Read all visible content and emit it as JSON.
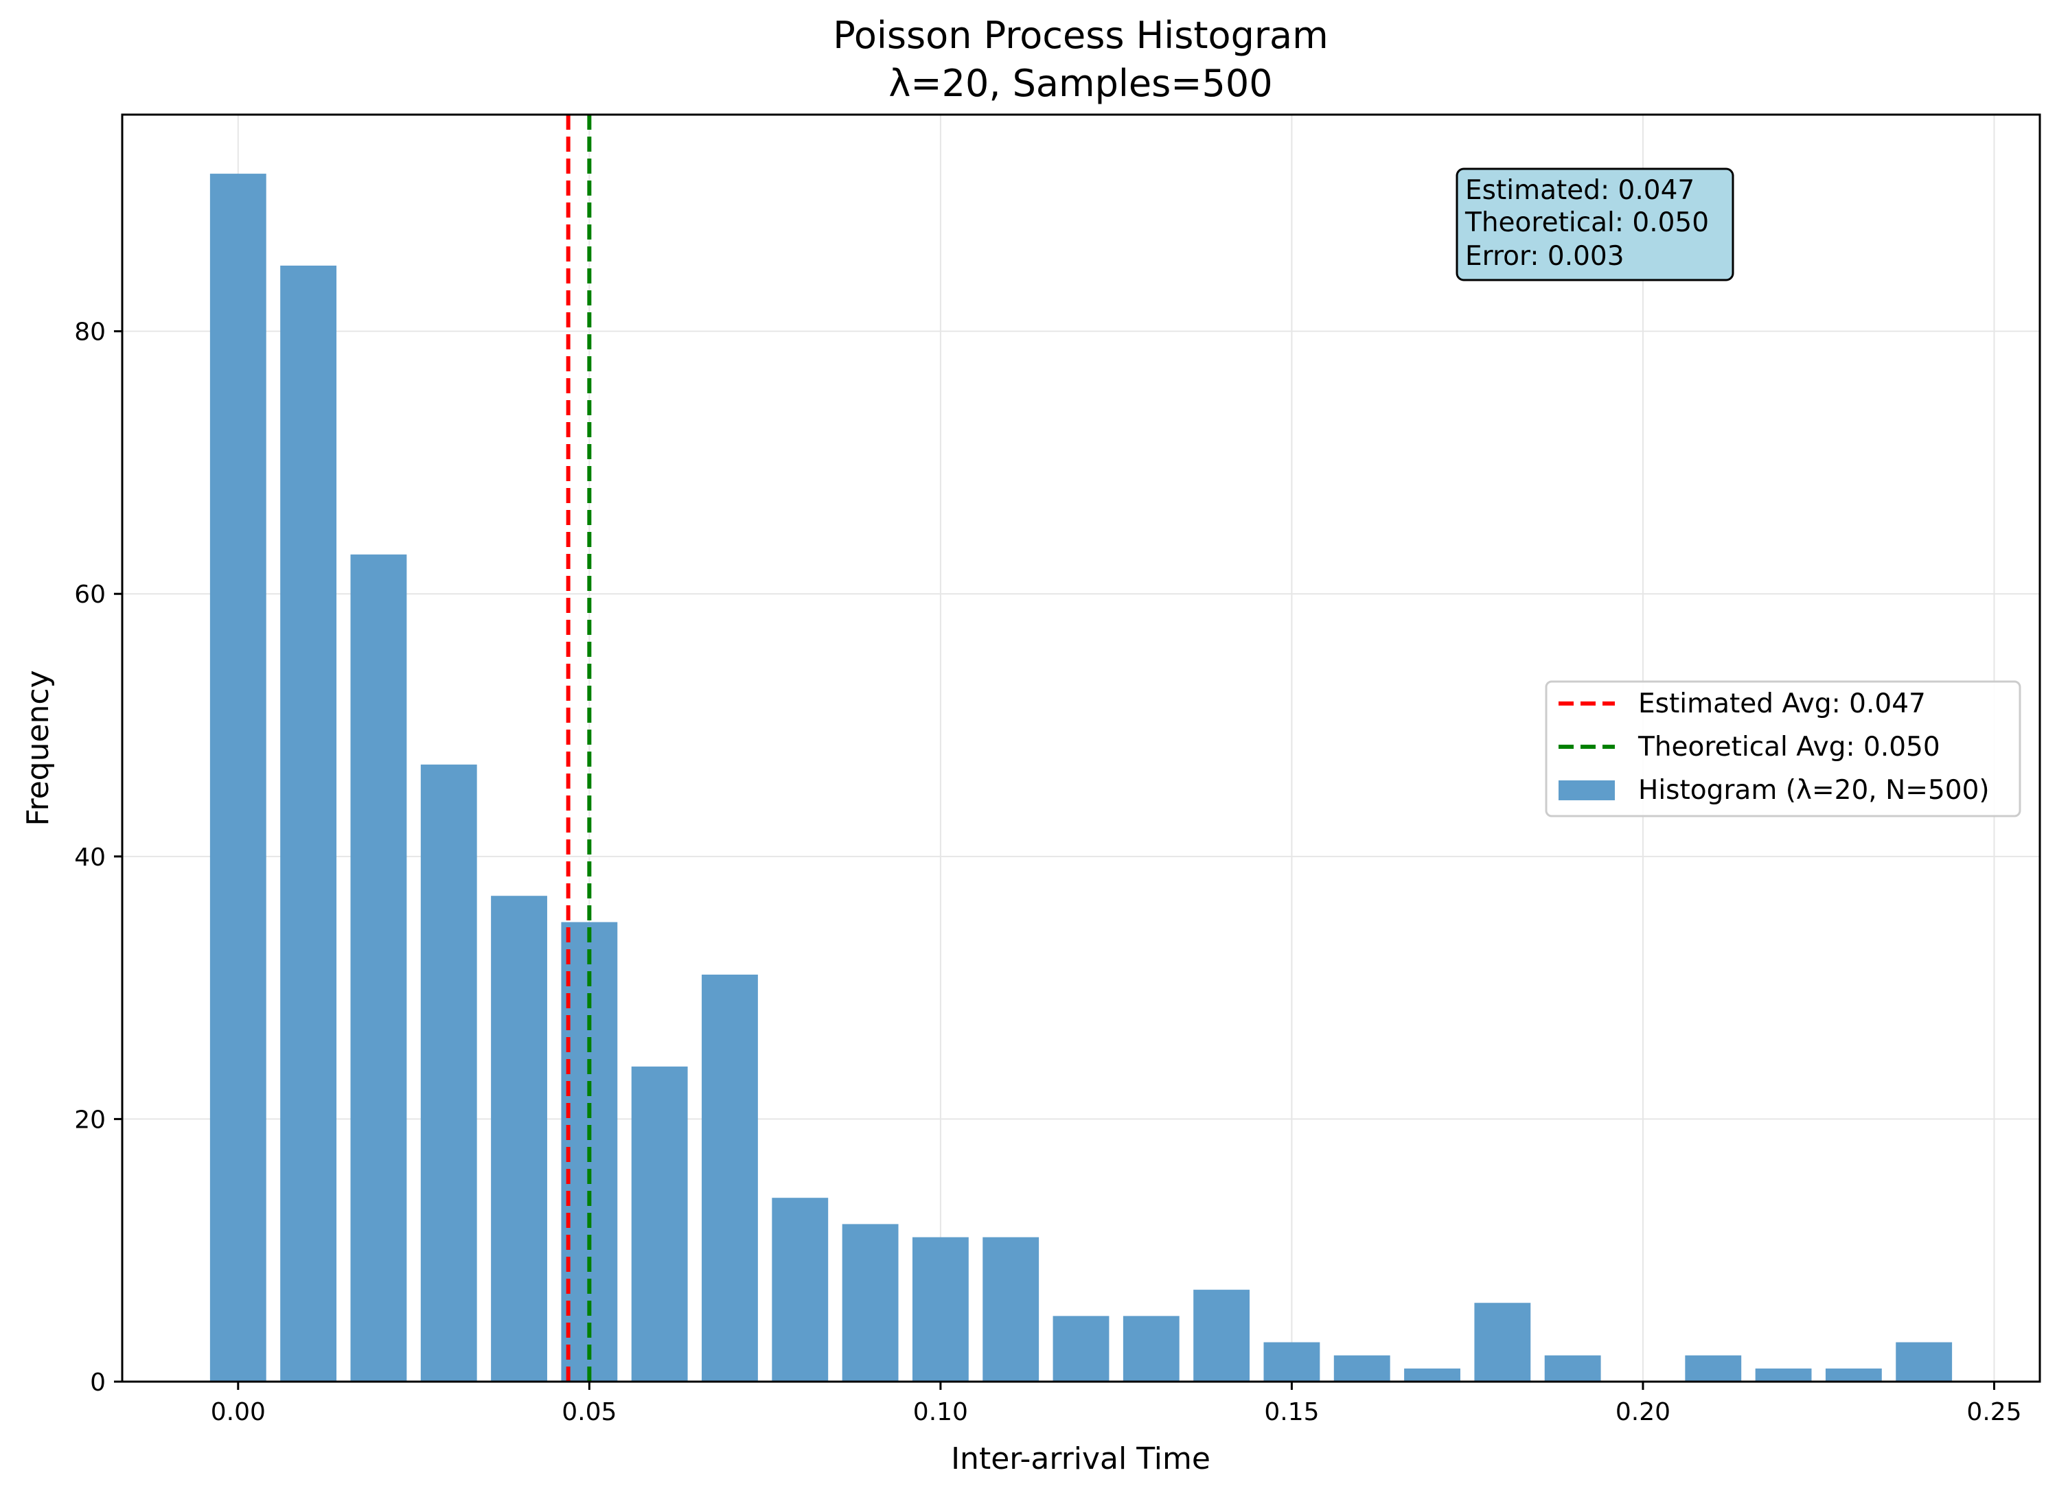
{
  "chart_data": {
    "type": "bar",
    "title": "Poisson Process Histogram",
    "subtitle": "λ=20, Samples=500",
    "xlabel": "Inter-arrival Time",
    "ylabel": "Frequency",
    "xlim": [
      -0.0165,
      0.2565
    ],
    "ylim": [
      0,
      96.5
    ],
    "xticks": [
      "0.00",
      "0.05",
      "0.10",
      "0.15",
      "0.20",
      "0.25"
    ],
    "xtick_values": [
      0.0,
      0.05,
      0.1,
      0.15,
      0.2,
      0.25
    ],
    "yticks": [
      "0",
      "20",
      "40",
      "60",
      "80"
    ],
    "ytick_values": [
      0,
      20,
      40,
      60,
      80
    ],
    "grid": true,
    "bar_color": "#5f9dcb",
    "bar_width": 0.008,
    "bars": {
      "name": "Histogram (λ=20, N=500)",
      "x": [
        0.0,
        0.01,
        0.02,
        0.03,
        0.04,
        0.05,
        0.06,
        0.07,
        0.08,
        0.09,
        0.1,
        0.11,
        0.12,
        0.13,
        0.14,
        0.15,
        0.16,
        0.17,
        0.18,
        0.19,
        0.2,
        0.21,
        0.22,
        0.23,
        0.24
      ],
      "values": [
        92,
        85,
        63,
        47,
        37,
        35,
        24,
        31,
        14,
        12,
        11,
        11,
        5,
        5,
        7,
        3,
        2,
        1,
        6,
        2,
        0,
        2,
        1,
        1,
        3
      ]
    },
    "vlines": [
      {
        "name": "Estimated Avg: 0.047",
        "x": 0.047,
        "color": "#ff0000",
        "style": "dashed"
      },
      {
        "name": "Theoretical Avg: 0.050",
        "x": 0.05,
        "color": "#008000",
        "style": "dashed"
      }
    ],
    "legend": {
      "placement": "center-right",
      "entries": [
        "Estimated Avg: 0.047",
        "Theoretical Avg: 0.050",
        "Histogram (λ=20, N=500)"
      ]
    },
    "annotation": {
      "lines": [
        "Estimated: 0.047",
        "Theoretical: 0.050",
        "Error: 0.003"
      ],
      "placement": "top-right",
      "background": "#add8e6"
    }
  }
}
